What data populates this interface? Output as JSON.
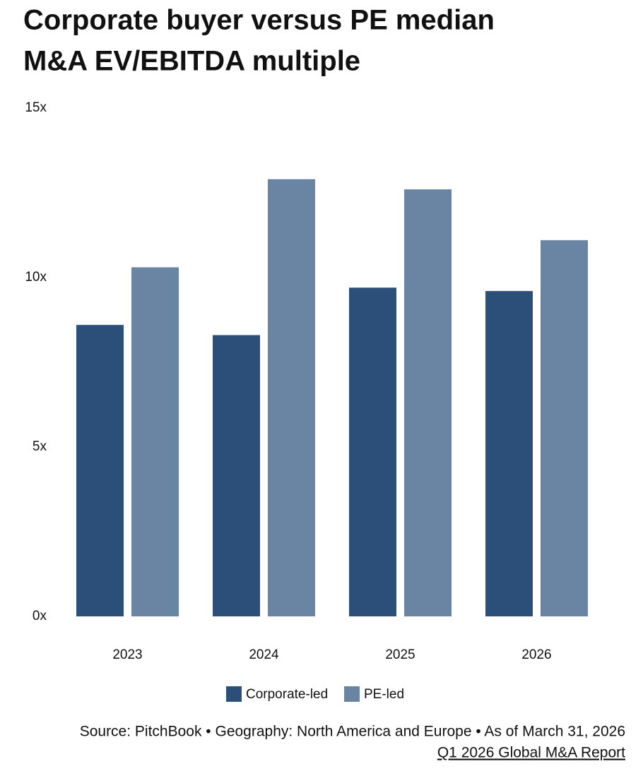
{
  "chart_data": {
    "type": "bar",
    "title": [
      "Corporate buyer versus PE median",
      "M&A EV/EBITDA multiple"
    ],
    "categories": [
      "2023",
      "2024",
      "2025",
      "2026"
    ],
    "series": [
      {
        "name": "Corporate-led",
        "color": "#2c4f7a",
        "values": [
          8.6,
          8.3,
          9.7,
          9.6
        ]
      },
      {
        "name": "PE-led",
        "color": "#6a85a3",
        "values": [
          10.3,
          12.9,
          12.6,
          11.1
        ]
      }
    ],
    "ylim": [
      0,
      15
    ],
    "yticks": [
      {
        "value": 0,
        "label": "0x"
      },
      {
        "value": 5,
        "label": "5x"
      },
      {
        "value": 10,
        "label": "10x"
      },
      {
        "value": 15,
        "label": "15x"
      }
    ],
    "grid": false,
    "legend": "bottom",
    "source": "Source: PitchBook • Geography: North America and Europe • As of March 31, 2026",
    "report": "Q1 2026 Global M&A Report"
  }
}
